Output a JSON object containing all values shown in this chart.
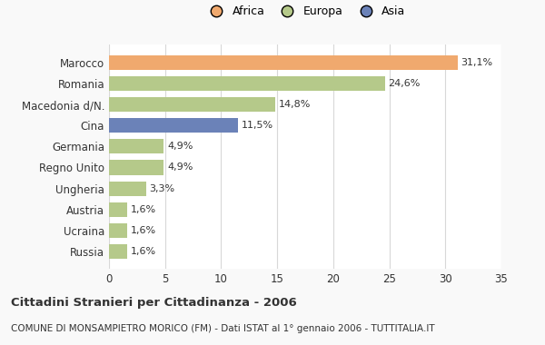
{
  "categories": [
    "Russia",
    "Ucraina",
    "Austria",
    "Ungheria",
    "Regno Unito",
    "Germania",
    "Cina",
    "Macedonia d/N.",
    "Romania",
    "Marocco"
  ],
  "values": [
    1.6,
    1.6,
    1.6,
    3.3,
    4.9,
    4.9,
    11.5,
    14.8,
    24.6,
    31.1
  ],
  "labels": [
    "1,6%",
    "1,6%",
    "1,6%",
    "3,3%",
    "4,9%",
    "4,9%",
    "11,5%",
    "14,8%",
    "24,6%",
    "31,1%"
  ],
  "colors": [
    "#b5c98a",
    "#b5c98a",
    "#b5c98a",
    "#b5c98a",
    "#b5c98a",
    "#b5c98a",
    "#6b82b8",
    "#b5c98a",
    "#b5c98a",
    "#f0a96e"
  ],
  "legend_labels": [
    "Africa",
    "Europa",
    "Asia"
  ],
  "legend_colors": [
    "#f0a96e",
    "#b5c98a",
    "#6b82b8"
  ],
  "title": "Cittadini Stranieri per Cittadinanza - 2006",
  "subtitle": "COMUNE DI MONSAMPIETRO MORICO (FM) - Dati ISTAT al 1° gennaio 2006 - TUTTITALIA.IT",
  "xlim": [
    0,
    35
  ],
  "xticks": [
    0,
    5,
    10,
    15,
    20,
    25,
    30,
    35
  ],
  "background_color": "#f9f9f9",
  "bar_background": "#ffffff",
  "grid_color": "#d8d8d8",
  "text_color": "#333333"
}
